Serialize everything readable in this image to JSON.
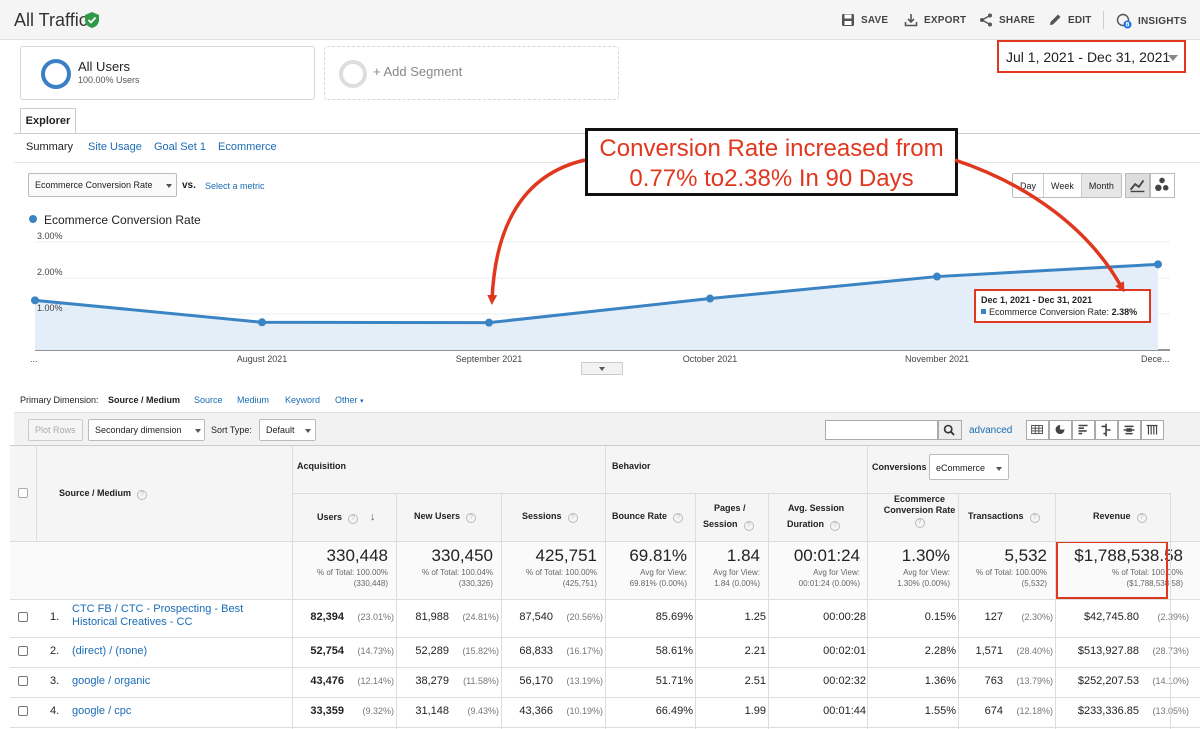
{
  "header": {
    "title": "All Traffic",
    "tools": {
      "save": "SAVE",
      "export": "EXPORT",
      "share": "SHARE",
      "edit": "EDIT",
      "insights": "INSIGHTS",
      "insights_badge": "8"
    }
  },
  "segments": {
    "all_users": {
      "name": "All Users",
      "sub": "100.00% Users"
    },
    "add_segment": "+ Add Segment"
  },
  "date_range": "Jul 1, 2021 - Dec 31, 2021",
  "explorer": {
    "tab": "Explorer",
    "subtabs": [
      "Summary",
      "Site Usage",
      "Goal Set 1",
      "Ecommerce"
    ]
  },
  "metric": {
    "selected": "Ecommerce Conversion Rate",
    "vs": "vs.",
    "select_metric": "Select a metric",
    "granularity": [
      "Day",
      "Week",
      "Month"
    ]
  },
  "chart_data": {
    "type": "line",
    "series": [
      {
        "name": "Ecommerce Conversion Rate",
        "values": [
          1.38,
          0.77,
          0.76,
          1.43,
          2.04,
          2.38
        ]
      }
    ],
    "x": [
      "Jul 2021",
      "Aug 2021",
      "Sep 2021",
      "Oct 2021",
      "Nov 2021",
      "Dec 2021"
    ],
    "x_tick_labels": [
      "...",
      "August 2021",
      "September 2021",
      "October 2021",
      "November 2021",
      "Dece..."
    ],
    "y_tick_labels": [
      "3.00%",
      "2.00%",
      "1.00%"
    ],
    "ylim": [
      0,
      3
    ],
    "colors": {
      "line": "#3b84c4",
      "fill": "#e4eef8"
    }
  },
  "tooltip": {
    "date": "Dec 1, 2021 - Dec 31, 2021",
    "label": "Ecommerce Conversion Rate:",
    "value": "2.38%"
  },
  "annotation": {
    "line1": "Conversion Rate increased from",
    "line2": "0.77% to2.38% In 90 Days",
    "color": "#e0371f"
  },
  "dimension": {
    "label": "Primary Dimension:",
    "options": [
      "Source / Medium",
      "Source",
      "Medium",
      "Keyword",
      "Other"
    ]
  },
  "toolbar": {
    "plot_rows": "Plot Rows",
    "secondary": "Secondary dimension",
    "sort_type_label": "Sort Type:",
    "sort_type": "Default",
    "advanced": "advanced"
  },
  "table": {
    "dimension_header": "Source / Medium",
    "groups": {
      "acquisition": "Acquisition",
      "behavior": "Behavior",
      "conversions": "Conversions",
      "conversions_select": "eCommerce"
    },
    "columns": {
      "users": "Users",
      "new_users": "New Users",
      "sessions": "Sessions",
      "bounce": "Bounce Rate",
      "pages_1": "Pages /",
      "pages_2": "Session",
      "duration_1": "Avg. Session",
      "duration_2": "Duration",
      "ecr_1": "Ecommerce",
      "ecr_2": "Conversion Rate",
      "transactions": "Transactions",
      "revenue": "Revenue"
    },
    "totals": {
      "users": "330,448",
      "users_s1": "% of Total: 100.00%",
      "users_s2": "(330,448)",
      "new_users": "330,450",
      "new_users_s1": "% of Total: 100.04%",
      "new_users_s2": "(330,326)",
      "sessions": "425,751",
      "sessions_s1": "% of Total: 100.00%",
      "sessions_s2": "(425,751)",
      "bounce": "69.81%",
      "bounce_s1": "Avg for View:",
      "bounce_s2": "69.81% (0.00%)",
      "pages": "1.84",
      "pages_s1": "Avg for View:",
      "pages_s2": "1.84 (0.00%)",
      "duration": "00:01:24",
      "duration_s1": "Avg for View:",
      "duration_s2": "00:01:24 (0.00%)",
      "ecr": "1.30%",
      "ecr_s1": "Avg for View:",
      "ecr_s2": "1.30% (0.00%)",
      "transactions": "5,532",
      "transactions_s1": "% of Total: 100.00%",
      "transactions_s2": "(5,532)",
      "revenue": "$1,788,538.58",
      "revenue_s1": "% of Total: 100.00%",
      "revenue_s2": "($1,788,538.58)"
    },
    "rows": [
      {
        "idx": "1.",
        "source": "CTC FB / CTC - Prospecting - Best",
        "source2": "Historical Creatives - CC",
        "users": "82,394",
        "users_p": "(23.01%)",
        "new_users": "81,988",
        "new_users_p": "(24.81%)",
        "sessions": "87,540",
        "sessions_p": "(20.56%)",
        "bounce": "85.69%",
        "pages": "1.25",
        "duration": "00:00:28",
        "ecr": "0.15%",
        "transactions": "127",
        "transactions_p": "(2.30%)",
        "revenue": "$42,745.80",
        "revenue_p": "(2.39%)"
      },
      {
        "idx": "2.",
        "source": "(direct) / (none)",
        "source2": "",
        "users": "52,754",
        "users_p": "(14.73%)",
        "new_users": "52,289",
        "new_users_p": "(15.82%)",
        "sessions": "68,833",
        "sessions_p": "(16.17%)",
        "bounce": "58.61%",
        "pages": "2.21",
        "duration": "00:02:01",
        "ecr": "2.28%",
        "transactions": "1,571",
        "transactions_p": "(28.40%)",
        "revenue": "$513,927.88",
        "revenue_p": "(28.73%)"
      },
      {
        "idx": "3.",
        "source": "google / organic",
        "source2": "",
        "users": "43,476",
        "users_p": "(12.14%)",
        "new_users": "38,279",
        "new_users_p": "(11.58%)",
        "sessions": "56,170",
        "sessions_p": "(13.19%)",
        "bounce": "51.71%",
        "pages": "2.51",
        "duration": "00:02:32",
        "ecr": "1.36%",
        "transactions": "763",
        "transactions_p": "(13.79%)",
        "revenue": "$252,207.53",
        "revenue_p": "(14.10%)"
      },
      {
        "idx": "4.",
        "source": "google / cpc",
        "source2": "",
        "users": "33,359",
        "users_p": "(9.32%)",
        "new_users": "31,148",
        "new_users_p": "(9.43%)",
        "sessions": "43,366",
        "sessions_p": "(10.19%)",
        "bounce": "66.49%",
        "pages": "1.99",
        "duration": "00:01:44",
        "ecr": "1.55%",
        "transactions": "674",
        "transactions_p": "(12.18%)",
        "revenue": "$233,336.85",
        "revenue_p": "(13.05%)"
      }
    ]
  }
}
